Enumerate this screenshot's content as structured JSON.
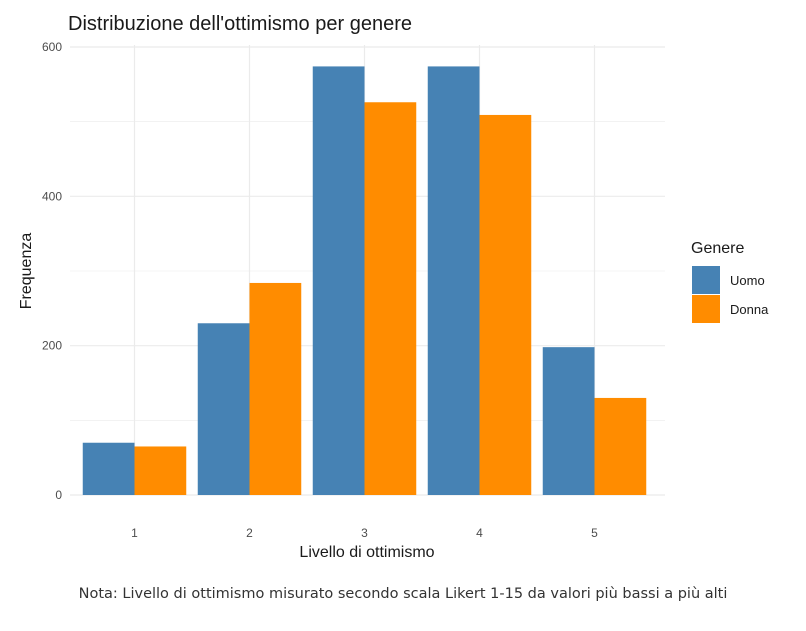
{
  "chart_data": {
    "type": "bar",
    "title": "Distribuzione dell'ottimismo per genere",
    "xlabel": "Livello di ottimismo",
    "ylabel": "Frequenza",
    "categories": [
      "1",
      "2",
      "3",
      "4",
      "5"
    ],
    "series": [
      {
        "name": "Uomo",
        "color": "#4682B4",
        "values": [
          70,
          230,
          574,
          574,
          198
        ]
      },
      {
        "name": "Donna",
        "color": "#FF8C00",
        "values": [
          65,
          284,
          526,
          509,
          130
        ]
      }
    ],
    "ylim": [
      0,
      600
    ],
    "yticks": [
      0,
      200,
      400,
      600
    ],
    "grid": true,
    "legend": {
      "title": "Genere",
      "placement": "right"
    }
  },
  "caption": "Nota: Livello di ottimismo misurato secondo scala Likert 1-15 da valori più bassi a più alti"
}
